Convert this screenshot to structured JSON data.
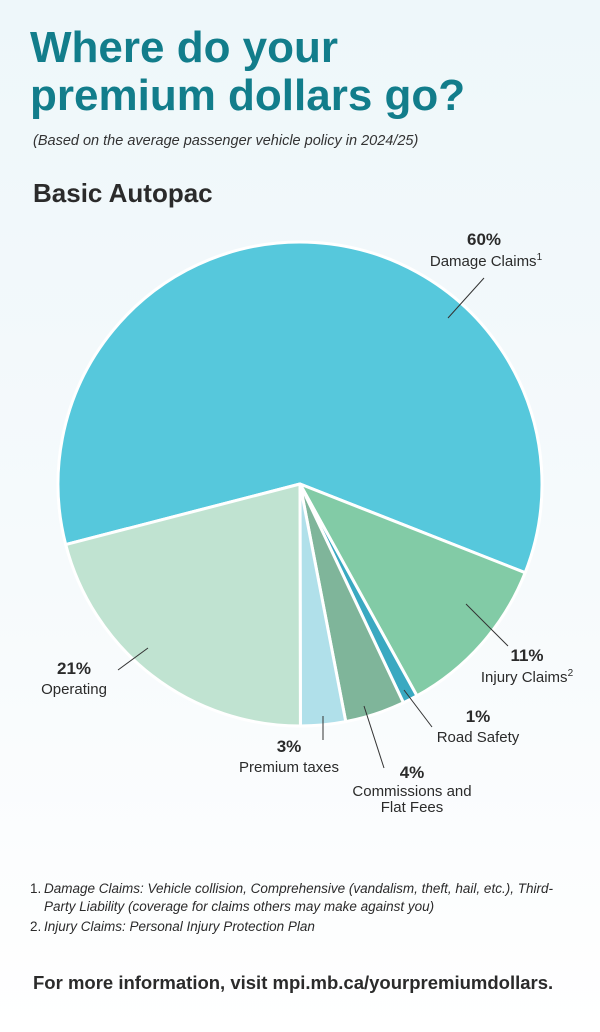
{
  "title_line1": "Where do your",
  "title_line2": "premium dollars go?",
  "subtitle": "(Based on the average passenger vehicle policy in 2024/25)",
  "section_title": "Basic Autopac",
  "chart_data": {
    "type": "pie",
    "title": "Basic Autopac",
    "slices": [
      {
        "label": "Damage Claims",
        "superscript": "1",
        "value": 60,
        "value_label": "60%",
        "color": "#56c8dc"
      },
      {
        "label": "Injury Claims",
        "superscript": "2",
        "value": 11,
        "value_label": "11%",
        "color": "#82cba6"
      },
      {
        "label": "Road Safety",
        "superscript": "",
        "value": 1,
        "value_label": "1%",
        "color": "#3aa9c1"
      },
      {
        "label": "Commissions and Flat Fees",
        "superscript": "",
        "value": 4,
        "value_label": "4%",
        "color": "#7fb59a"
      },
      {
        "label": "Premium taxes",
        "superscript": "",
        "value": 3,
        "value_label": "3%",
        "color": "#b0e0ea"
      },
      {
        "label": "Operating",
        "superscript": "",
        "value": 21,
        "value_label": "21%",
        "color": "#c0e3d1"
      }
    ]
  },
  "labels": {
    "commissions_line1": "Commissions and",
    "commissions_line2": "Flat Fees"
  },
  "footnotes": [
    {
      "num": "1.",
      "text": "Damage Claims: Vehicle collision, Comprehensive (vandalism, theft, hail, etc.), Third-Party Liability (coverage for claims others may make against you)"
    },
    {
      "num": "2.",
      "text": "Injury Claims: Personal Injury Protection Plan"
    }
  ],
  "footer": "For more information, visit mpi.mb.ca/yourpremiumdollars."
}
